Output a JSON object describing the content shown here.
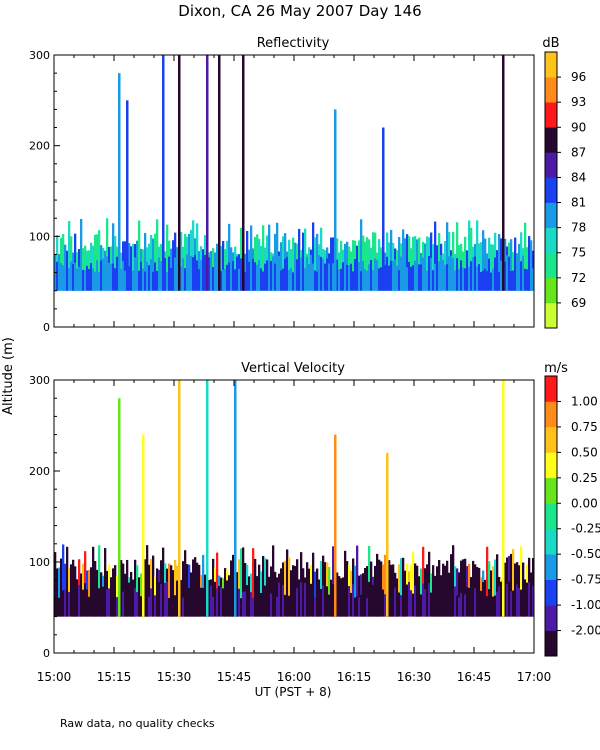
{
  "figure": {
    "title": "Dixon, CA 26 May 2007  Day 146",
    "footnote": "Raw data, no quality checks",
    "shared_ylabel": "Altitude (m)",
    "xlabel": "UT  (PST + 8)"
  },
  "chart_data": [
    {
      "type": "heatmap",
      "title": "Reflectivity",
      "colorbar_unit": "dB",
      "colorbar_ticks": [
        "69",
        "72",
        "75",
        "78",
        "81",
        "84",
        "87",
        "90",
        "93",
        "96"
      ],
      "colorbar_colors": [
        "#ccff33",
        "#66e61a",
        "#1ae68c",
        "#1ad9c7",
        "#1a9ae6",
        "#1a40f2",
        "#4d1aa6",
        "#26082e",
        "#ff1a1a",
        "#ff8c1a",
        "#ffc21a"
      ],
      "x_ticks": [
        "15:00",
        "15:15",
        "15:30",
        "15:45",
        "16:00",
        "16:15",
        "16:30",
        "16:45",
        "17:00"
      ],
      "xlim_minutes_after_1500": [
        0,
        120
      ],
      "y_ticks": [
        "0",
        "100",
        "200",
        "300"
      ],
      "ylim_m": [
        0,
        300
      ],
      "base_altitude_m": 40,
      "typical_top_m": 100,
      "tall_echoes": [
        {
          "minute": 16,
          "top_m": 280,
          "dB": 81
        },
        {
          "minute": 18,
          "top_m": 250,
          "dB": 84
        },
        {
          "minute": 27,
          "top_m": 300,
          "dB": 84
        },
        {
          "minute": 31,
          "top_m": 300,
          "dB": 90
        },
        {
          "minute": 38,
          "top_m": 300,
          "dB": 87
        },
        {
          "minute": 41,
          "top_m": 300,
          "dB": 90
        },
        {
          "minute": 47,
          "top_m": 300,
          "dB": 90
        },
        {
          "minute": 70,
          "top_m": 240,
          "dB": 81
        },
        {
          "minute": 82,
          "top_m": 220,
          "dB": 84
        },
        {
          "minute": 112,
          "top_m": 300,
          "dB": 90
        }
      ]
    },
    {
      "type": "heatmap",
      "title": "Vertical Velocity",
      "colorbar_unit": "m/s",
      "colorbar_ticks": [
        "-2.00",
        "-1.00",
        "-0.75",
        "-0.50",
        "-0.25",
        "0.00",
        "0.25",
        "0.50",
        "0.75",
        "1.00"
      ],
      "colorbar_colors": [
        "#26082e",
        "#4d1aa6",
        "#1a40f2",
        "#1a9ae6",
        "#1ad9c7",
        "#1ae68c",
        "#66e61a",
        "#ffff1a",
        "#ffc21a",
        "#ff8c1a",
        "#ff1a1a"
      ],
      "x_ticks": [
        "15:00",
        "15:15",
        "15:30",
        "15:45",
        "16:00",
        "16:15",
        "16:30",
        "16:45",
        "17:00"
      ],
      "xlim_minutes_after_1500": [
        0,
        120
      ],
      "y_ticks": [
        "0",
        "100",
        "200",
        "300"
      ],
      "ylim_m": [
        0,
        300
      ],
      "base_altitude_m": 40,
      "typical_top_m": 100,
      "tall_echoes": [
        {
          "minute": 16,
          "top_m": 280,
          "mps": 0.25
        },
        {
          "minute": 22,
          "top_m": 240,
          "mps": 0.5
        },
        {
          "minute": 31,
          "top_m": 300,
          "mps": 0.75
        },
        {
          "minute": 38,
          "top_m": 300,
          "mps": -0.25
        },
        {
          "minute": 45,
          "top_m": 300,
          "mps": -0.5
        },
        {
          "minute": 70,
          "top_m": 240,
          "mps": 1.0
        },
        {
          "minute": 83,
          "top_m": 220,
          "mps": 0.75
        },
        {
          "minute": 112,
          "top_m": 300,
          "mps": 0.5
        }
      ]
    }
  ]
}
